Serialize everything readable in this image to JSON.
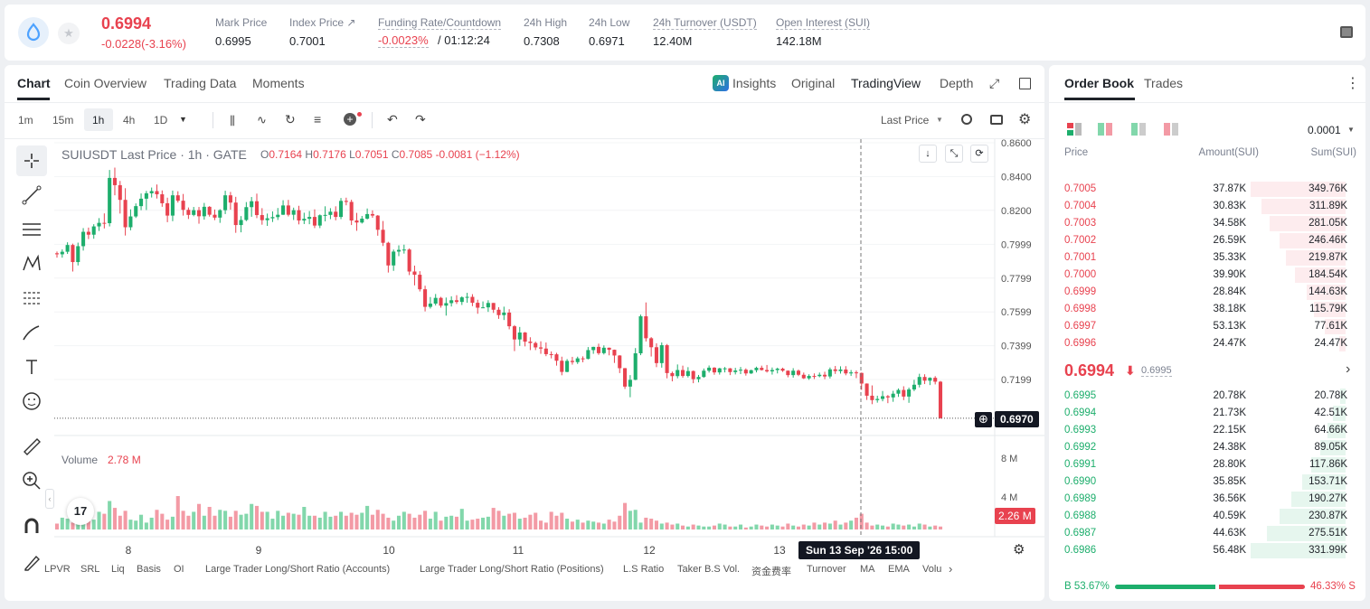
{
  "ticker": {
    "price": "0.6994",
    "change": "-0.0228(-3.16%)",
    "stats": [
      {
        "label": "Mark Price",
        "value": "0.6995"
      },
      {
        "label": "Index Price ↗",
        "value": "0.7001"
      },
      {
        "label": "Funding Rate/Countdown",
        "value_red": "-0.0023%",
        "value": "/ 01:12:24"
      },
      {
        "label": "24h High",
        "value": "0.7308"
      },
      {
        "label": "24h Low",
        "value": "0.6971"
      },
      {
        "label": "24h Turnover (USDT)",
        "value": "12.40M"
      },
      {
        "label": "Open Interest (SUI)",
        "value": "142.18M"
      }
    ]
  },
  "chart_tabs": [
    "Chart",
    "Coin Overview",
    "Trading Data",
    "Moments"
  ],
  "view_tabs": [
    "Insights",
    "Original",
    "TradingView",
    "Depth"
  ],
  "intervals": [
    "1m",
    "15m",
    "1h",
    "4h",
    "1D"
  ],
  "price_type": "Last Price",
  "legend": {
    "symbol": "SUIUSDT Last Price · 1h · GATE",
    "o": "O",
    "ov": "0.7164",
    "h": "H",
    "hv": "0.7176",
    "l": "L",
    "lv": "0.7051",
    "c": "C",
    "cv": "0.7085",
    "chg": "-0.0081 (−1.12%)"
  },
  "price_axis": [
    "0.8600",
    "0.8400",
    "0.8200",
    "0.7999",
    "0.7799",
    "0.7599",
    "0.7399",
    "0.7199"
  ],
  "last_price_tag": "0.6970",
  "volume": {
    "label": "Volume",
    "value": "2.78 M",
    "axis": [
      "8 M",
      "4 M"
    ],
    "tag": "2.26 M"
  },
  "x_axis": [
    "8",
    "9",
    "10",
    "11",
    "12",
    "13"
  ],
  "crosshair_time": "Sun 13 Sep '26   15:00",
  "indicators": [
    "LPVR",
    "SRL",
    "Liq",
    "Basis",
    "OI",
    "Large Trader Long/Short Ratio (Accounts)",
    "Large Trader Long/Short Ratio (Positions)",
    "L.S Ratio",
    "Taker B.S Vol.",
    "资金费率",
    "Turnover",
    "MA",
    "EMA",
    "Volu"
  ],
  "orderbook": {
    "tabs": [
      "Order Book",
      "Trades"
    ],
    "precision": "0.0001",
    "headers": [
      "Price",
      "Amount(SUI)",
      "Sum(SUI)"
    ],
    "asks": [
      {
        "p": "0.7005",
        "a": "37.87K",
        "s": "349.76K",
        "f": 1.0
      },
      {
        "p": "0.7004",
        "a": "30.83K",
        "s": "311.89K",
        "f": 0.89
      },
      {
        "p": "0.7003",
        "a": "34.58K",
        "s": "281.05K",
        "f": 0.8
      },
      {
        "p": "0.7002",
        "a": "26.59K",
        "s": "246.46K",
        "f": 0.7
      },
      {
        "p": "0.7001",
        "a": "35.33K",
        "s": "219.87K",
        "f": 0.63
      },
      {
        "p": "0.7000",
        "a": "39.90K",
        "s": "184.54K",
        "f": 0.53
      },
      {
        "p": "0.6999",
        "a": "28.84K",
        "s": "144.63K",
        "f": 0.41
      },
      {
        "p": "0.6998",
        "a": "38.18K",
        "s": "115.79K",
        "f": 0.33
      },
      {
        "p": "0.6997",
        "a": "53.13K",
        "s": "77.61K",
        "f": 0.22
      },
      {
        "p": "0.6996",
        "a": "24.47K",
        "s": "24.47K",
        "f": 0.07
      }
    ],
    "mid_price": "0.6994",
    "mid_mark": "0.6995",
    "bids": [
      {
        "p": "0.6995",
        "a": "20.78K",
        "s": "20.78K",
        "f": 0.06
      },
      {
        "p": "0.6994",
        "a": "21.73K",
        "s": "42.51K",
        "f": 0.13
      },
      {
        "p": "0.6993",
        "a": "22.15K",
        "s": "64.66K",
        "f": 0.19
      },
      {
        "p": "0.6992",
        "a": "24.38K",
        "s": "89.05K",
        "f": 0.27
      },
      {
        "p": "0.6991",
        "a": "28.80K",
        "s": "117.86K",
        "f": 0.36
      },
      {
        "p": "0.6990",
        "a": "35.85K",
        "s": "153.71K",
        "f": 0.46
      },
      {
        "p": "0.6989",
        "a": "36.56K",
        "s": "190.27K",
        "f": 0.57
      },
      {
        "p": "0.6988",
        "a": "40.59K",
        "s": "230.87K",
        "f": 0.7
      },
      {
        "p": "0.6987",
        "a": "44.63K",
        "s": "275.51K",
        "f": 0.83
      },
      {
        "p": "0.6986",
        "a": "56.48K",
        "s": "331.99K",
        "f": 1.0
      }
    ],
    "buy_ratio": "B 53.67%",
    "sell_ratio": "46.33% S",
    "buy_frac": 0.5367
  },
  "colors": {
    "up": "#1dae6c",
    "down": "#e8424f",
    "up_light": "#82d7ab",
    "down_light": "#f39aa5"
  },
  "candles": [
    [
      0.7946,
      0.7956,
      0.792,
      0.794
    ],
    [
      0.794,
      0.7969,
      0.792,
      0.7955
    ],
    [
      0.7955,
      0.8011,
      0.7942,
      0.7995
    ],
    [
      0.7995,
      0.8003,
      0.7838,
      0.7894
    ],
    [
      0.7894,
      0.8009,
      0.7874,
      0.7988
    ],
    [
      0.7988,
      0.8095,
      0.7962,
      0.8073
    ],
    [
      0.8073,
      0.8098,
      0.803,
      0.8056
    ],
    [
      0.8056,
      0.8118,
      0.8032,
      0.8105
    ],
    [
      0.8105,
      0.8154,
      0.8078,
      0.8126
    ],
    [
      0.8126,
      0.8182,
      0.8093,
      0.8124
    ],
    [
      0.8124,
      0.8439,
      0.8105,
      0.8392
    ],
    [
      0.8392,
      0.8453,
      0.8289,
      0.8349
    ],
    [
      0.8349,
      0.8374,
      0.8181,
      0.8262
    ],
    [
      0.8262,
      0.8331,
      0.8051,
      0.81
    ],
    [
      0.81,
      0.8206,
      0.8082,
      0.8164
    ],
    [
      0.8164,
      0.8241,
      0.8155,
      0.8225
    ],
    [
      0.8225,
      0.83,
      0.8201,
      0.8269
    ],
    [
      0.8269,
      0.8315,
      0.8202,
      0.8301
    ],
    [
      0.8301,
      0.8335,
      0.8276,
      0.8314
    ],
    [
      0.8314,
      0.8353,
      0.827,
      0.8295
    ],
    [
      0.8295,
      0.8318,
      0.8221,
      0.8242
    ],
    [
      0.8242,
      0.8275,
      0.813,
      0.8169
    ],
    [
      0.8169,
      0.8317,
      0.8136,
      0.8289
    ],
    [
      0.8289,
      0.8313,
      0.8246,
      0.8257
    ],
    [
      0.8257,
      0.8297,
      0.8169,
      0.8203
    ],
    [
      0.8203,
      0.8217,
      0.8149,
      0.8173
    ],
    [
      0.8173,
      0.822,
      0.8165,
      0.8201
    ],
    [
      0.8201,
      0.822,
      0.8121,
      0.8165
    ],
    [
      0.8165,
      0.8244,
      0.8145,
      0.8221
    ],
    [
      0.8221,
      0.8225,
      0.8163,
      0.8174
    ],
    [
      0.8174,
      0.8205,
      0.8142,
      0.8157
    ],
    [
      0.8157,
      0.8207,
      0.8126,
      0.8201
    ],
    [
      0.8201,
      0.8316,
      0.8178,
      0.8289
    ],
    [
      0.8289,
      0.8309,
      0.8204,
      0.8246
    ],
    [
      0.8246,
      0.828,
      0.8067,
      0.8113
    ],
    [
      0.8113,
      0.8166,
      0.807,
      0.8143
    ],
    [
      0.8143,
      0.8249,
      0.8136,
      0.8219
    ],
    [
      0.8219,
      0.8279,
      0.8162,
      0.8254
    ],
    [
      0.8254,
      0.8299,
      0.8154,
      0.8172
    ],
    [
      0.8172,
      0.8213,
      0.8115,
      0.8142
    ],
    [
      0.8142,
      0.8181,
      0.8108,
      0.8153
    ],
    [
      0.8153,
      0.8194,
      0.8131,
      0.816
    ],
    [
      0.816,
      0.8214,
      0.8143,
      0.8174
    ],
    [
      0.8174,
      0.826,
      0.8173,
      0.8229
    ],
    [
      0.8229,
      0.8262,
      0.8164,
      0.8174
    ],
    [
      0.8174,
      0.8216,
      0.8143,
      0.8201
    ],
    [
      0.8201,
      0.8227,
      0.8117,
      0.814
    ],
    [
      0.814,
      0.8186,
      0.8119,
      0.815
    ],
    [
      0.815,
      0.8196,
      0.8118,
      0.8161
    ],
    [
      0.8161,
      0.8206,
      0.8095,
      0.811
    ],
    [
      0.811,
      0.8176,
      0.8095,
      0.8171
    ],
    [
      0.8171,
      0.8224,
      0.8135,
      0.8173
    ],
    [
      0.8173,
      0.8213,
      0.8148,
      0.8192
    ],
    [
      0.8192,
      0.8224,
      0.8141,
      0.8161
    ],
    [
      0.8161,
      0.8273,
      0.8148,
      0.8256
    ],
    [
      0.8256,
      0.8275,
      0.823,
      0.825
    ],
    [
      0.825,
      0.8263,
      0.8113,
      0.814
    ],
    [
      0.814,
      0.8185,
      0.8079,
      0.8128
    ],
    [
      0.8128,
      0.8167,
      0.8122,
      0.8151
    ],
    [
      0.8151,
      0.8211,
      0.8146,
      0.8178
    ],
    [
      0.8178,
      0.82,
      0.8156,
      0.8169
    ],
    [
      0.8169,
      0.8172,
      0.805,
      0.8085
    ],
    [
      0.8085,
      0.8137,
      0.7989,
      0.8008
    ],
    [
      0.8008,
      0.8014,
      0.7832,
      0.7874
    ],
    [
      0.7874,
      0.7968,
      0.7842,
      0.7956
    ],
    [
      0.7956,
      0.7993,
      0.7929,
      0.7966
    ],
    [
      0.7966,
      0.7997,
      0.7944,
      0.7968
    ],
    [
      0.7968,
      0.7975,
      0.7817,
      0.7838
    ],
    [
      0.7838,
      0.7873,
      0.7756,
      0.7819
    ],
    [
      0.7819,
      0.784,
      0.772,
      0.7733
    ],
    [
      0.7733,
      0.7754,
      0.7602,
      0.7629
    ],
    [
      0.7629,
      0.7687,
      0.7619,
      0.7648
    ],
    [
      0.7648,
      0.7705,
      0.7637,
      0.7682
    ],
    [
      0.7682,
      0.7688,
      0.7624,
      0.7636
    ],
    [
      0.7636,
      0.7684,
      0.7577,
      0.7651
    ],
    [
      0.7651,
      0.7691,
      0.7631,
      0.7668
    ],
    [
      0.7668,
      0.7698,
      0.7646,
      0.7658
    ],
    [
      0.7658,
      0.7691,
      0.764,
      0.7685
    ],
    [
      0.7685,
      0.7712,
      0.7653,
      0.7688
    ],
    [
      0.7688,
      0.7704,
      0.7633,
      0.7653
    ],
    [
      0.7653,
      0.7671,
      0.7588,
      0.7624
    ],
    [
      0.7624,
      0.7661,
      0.7621,
      0.7626
    ],
    [
      0.7626,
      0.7668,
      0.7599,
      0.7652
    ],
    [
      0.7652,
      0.7652,
      0.7593,
      0.7612
    ],
    [
      0.7612,
      0.7627,
      0.7558,
      0.758
    ],
    [
      0.758,
      0.763,
      0.7551,
      0.7595
    ],
    [
      0.7595,
      0.7615,
      0.7496,
      0.7514
    ],
    [
      0.7514,
      0.7521,
      0.7367,
      0.7436
    ],
    [
      0.7436,
      0.751,
      0.7398,
      0.7477
    ],
    [
      0.7477,
      0.748,
      0.7395,
      0.7423
    ],
    [
      0.7423,
      0.7449,
      0.7373,
      0.7415
    ],
    [
      0.7415,
      0.7423,
      0.7373,
      0.7389
    ],
    [
      0.7389,
      0.7425,
      0.7351,
      0.7382
    ],
    [
      0.7382,
      0.7418,
      0.7337,
      0.7349
    ],
    [
      0.7349,
      0.7365,
      0.7324,
      0.7348
    ],
    [
      0.7348,
      0.7357,
      0.7281,
      0.731
    ],
    [
      0.731,
      0.7334,
      0.7224,
      0.7244
    ],
    [
      0.7244,
      0.732,
      0.7242,
      0.7309
    ],
    [
      0.7309,
      0.7333,
      0.7287,
      0.7302
    ],
    [
      0.7302,
      0.7334,
      0.7291,
      0.7324
    ],
    [
      0.7324,
      0.7336,
      0.7301,
      0.7321
    ],
    [
      0.7321,
      0.7391,
      0.7318,
      0.7373
    ],
    [
      0.7373,
      0.7393,
      0.7351,
      0.7392
    ],
    [
      0.7392,
      0.7411,
      0.7345,
      0.7355
    ],
    [
      0.7355,
      0.7401,
      0.7347,
      0.7387
    ],
    [
      0.7387,
      0.7388,
      0.7342,
      0.7375
    ],
    [
      0.7375,
      0.7376,
      0.7297,
      0.7341
    ],
    [
      0.7341,
      0.7343,
      0.7237,
      0.7266
    ],
    [
      0.7266,
      0.7267,
      0.7143,
      0.7157
    ],
    [
      0.7157,
      0.7225,
      0.7094,
      0.7197
    ],
    [
      0.7197,
      0.7385,
      0.7195,
      0.7354
    ],
    [
      0.7354,
      0.7583,
      0.7343,
      0.7573
    ],
    [
      0.7573,
      0.7655,
      0.7424,
      0.7443
    ],
    [
      0.7443,
      0.745,
      0.7335,
      0.739
    ],
    [
      0.739,
      0.7413,
      0.7272,
      0.7296
    ],
    [
      0.7296,
      0.7418,
      0.7269,
      0.7402
    ],
    [
      0.7402,
      0.7409,
      0.7206,
      0.7237
    ],
    [
      0.7237,
      0.7246,
      0.7188,
      0.7219
    ],
    [
      0.7219,
      0.7288,
      0.7206,
      0.7255
    ],
    [
      0.7255,
      0.7281,
      0.7209,
      0.722
    ],
    [
      0.722,
      0.7272,
      0.7211,
      0.7249
    ],
    [
      0.7249,
      0.7252,
      0.7177,
      0.7201
    ],
    [
      0.7201,
      0.7226,
      0.7182,
      0.7214
    ],
    [
      0.7214,
      0.7264,
      0.7209,
      0.7251
    ],
    [
      0.7251,
      0.7282,
      0.724,
      0.7269
    ],
    [
      0.7269,
      0.7272,
      0.7227,
      0.7241
    ],
    [
      0.7241,
      0.7268,
      0.7228,
      0.7265
    ],
    [
      0.7265,
      0.7273,
      0.7241,
      0.7265
    ],
    [
      0.7265,
      0.7267,
      0.7225,
      0.7243
    ],
    [
      0.7243,
      0.7268,
      0.7229,
      0.7252
    ],
    [
      0.7252,
      0.7273,
      0.7231,
      0.7257
    ],
    [
      0.7257,
      0.7265,
      0.7222,
      0.7235
    ],
    [
      0.7235,
      0.7257,
      0.7232,
      0.7254
    ],
    [
      0.7254,
      0.7275,
      0.7241,
      0.7268
    ],
    [
      0.7268,
      0.7281,
      0.7252,
      0.7255
    ],
    [
      0.7255,
      0.7285,
      0.724,
      0.7247
    ],
    [
      0.7247,
      0.727,
      0.7228,
      0.7255
    ],
    [
      0.7255,
      0.7269,
      0.7235,
      0.7263
    ],
    [
      0.7263,
      0.7269,
      0.7244,
      0.7251
    ],
    [
      0.7251,
      0.7253,
      0.7212,
      0.7225
    ],
    [
      0.7225,
      0.7266,
      0.721,
      0.7251
    ],
    [
      0.7251,
      0.7258,
      0.7219,
      0.7227
    ],
    [
      0.7227,
      0.724,
      0.7202,
      0.7206
    ],
    [
      0.7206,
      0.723,
      0.7197,
      0.722
    ],
    [
      0.722,
      0.7235,
      0.7202,
      0.7219
    ],
    [
      0.7219,
      0.724,
      0.7212,
      0.7227
    ],
    [
      0.7227,
      0.7245,
      0.7201,
      0.7217
    ],
    [
      0.7217,
      0.727,
      0.7205,
      0.7259
    ],
    [
      0.7259,
      0.7279,
      0.7232,
      0.7249
    ],
    [
      0.7249,
      0.7277,
      0.7234,
      0.7258
    ],
    [
      0.7258,
      0.7278,
      0.7224,
      0.7235
    ],
    [
      0.7235,
      0.7255,
      0.722,
      0.7241
    ],
    [
      0.7241,
      0.7252,
      0.7207,
      0.7238
    ],
    [
      0.7238,
      0.724,
      0.7138,
      0.7175
    ],
    [
      0.7175,
      0.7176,
      0.7078,
      0.7103
    ],
    [
      0.7103,
      0.7164,
      0.7053,
      0.7077
    ],
    [
      0.7077,
      0.7103,
      0.7062,
      0.7084
    ],
    [
      0.7084,
      0.7131,
      0.707,
      0.71
    ],
    [
      0.71,
      0.7107,
      0.7059,
      0.7093
    ],
    [
      0.7093,
      0.7132,
      0.7067,
      0.7115
    ],
    [
      0.7115,
      0.7146,
      0.7096,
      0.7137
    ],
    [
      0.7137,
      0.7159,
      0.7077,
      0.7098
    ],
    [
      0.7098,
      0.7151,
      0.7061,
      0.714
    ],
    [
      0.714,
      0.7197,
      0.713,
      0.7168
    ],
    [
      0.7168,
      0.7233,
      0.7152,
      0.7214
    ],
    [
      0.7214,
      0.723,
      0.7172,
      0.7192
    ],
    [
      0.7192,
      0.7212,
      0.7166,
      0.7209
    ],
    [
      0.7209,
      0.7219,
      0.717,
      0.7186
    ],
    [
      0.7186,
      0.719,
      0.6967,
      0.697
    ]
  ],
  "volumes": [
    0.6,
    1.2,
    1.1,
    0.7,
    1.4,
    1.6,
    2.2,
    1.0,
    1.8,
    1.6,
    2.9,
    2.2,
    1.4,
    1.9,
    1.0,
    0.9,
    1.5,
    0.7,
    1.2,
    2.0,
    1.6,
    1.0,
    1.3,
    3.4,
    1.9,
    1.4,
    1.8,
    2.6,
    1.4,
    2.3,
    1.4,
    2.0,
    1.9,
    1.3,
    1.9,
    1.5,
    1.6,
    2.6,
    2.4,
    1.8,
    1.8,
    1.1,
    1.9,
    1.4,
    1.7,
    1.6,
    1.5,
    2.3,
    1.4,
    1.4,
    1.2,
    1.8,
    1.3,
    1.4,
    1.8,
    1.4,
    1.7,
    1.5,
    1.7,
    2.4,
    1.5,
    2.0,
    1.6,
    1.2,
    0.9,
    1.4,
    1.8,
    1.6,
    1.2,
    1.5,
    1.9,
    1.1,
    1.8,
    0.9,
    1.3,
    1.4,
    1.3,
    2.1,
    0.9,
    1.0,
    1.1,
    1.2,
    1.3,
    2.2,
    1.9,
    1.4,
    1.6,
    1.7,
    1.1,
    1.2,
    1.5,
    1.7,
    0.9,
    0.7,
    1.8,
    1.4,
    1.7,
    1.1,
    0.8,
    1.0,
    0.7,
    0.9,
    0.8,
    0.7,
    0.6,
    1.0,
    0.8,
    1.4,
    2.7,
    1.9,
    2.0,
    0.7,
    1.2,
    1.1,
    0.9,
    0.6,
    0.7,
    0.5,
    0.6,
    0.4,
    0.3,
    0.5,
    0.4,
    0.3,
    0.3,
    0.4,
    0.6,
    0.5,
    0.3,
    0.3,
    0.5,
    0.2,
    0.3,
    0.5,
    0.4,
    0.3,
    0.5,
    0.4,
    0.3,
    0.6,
    0.4,
    0.3,
    0.5,
    0.4,
    0.7,
    0.5,
    0.7,
    0.6,
    0.9,
    0.5,
    0.7,
    0.9,
    1.2,
    1.6,
    0.7,
    0.4,
    0.5,
    0.4,
    0.3,
    0.6,
    0.5,
    0.4,
    0.5,
    0.3,
    0.6,
    0.5,
    0.3,
    0.4,
    0.3,
    0.2,
    0.5,
    0.3,
    2.2
  ]
}
